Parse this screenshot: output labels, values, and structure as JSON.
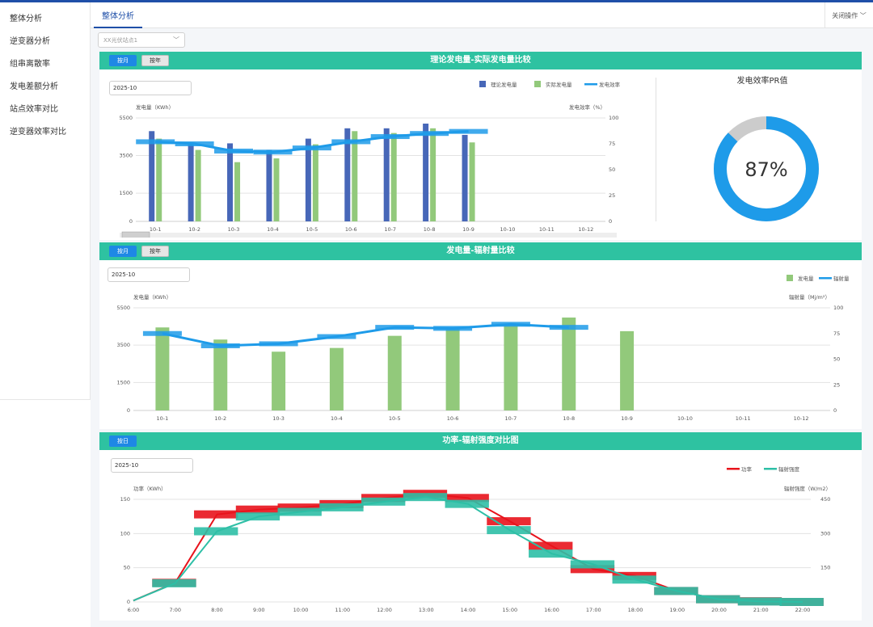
{
  "sidebar": {
    "items": [
      {
        "label": "整体分析"
      },
      {
        "label": "逆变器分析"
      },
      {
        "label": "组串离散率"
      },
      {
        "label": "发电差额分析"
      },
      {
        "label": "站点效率对比"
      },
      {
        "label": "逆变器效率对比"
      }
    ]
  },
  "tabs": {
    "active": "整体分析",
    "close": "关闭操作"
  },
  "site_select": {
    "value": "XX光伏站点1"
  },
  "panel1": {
    "btn_month": "按月",
    "btn_year": "按年",
    "title": "理论发电量-实际发电量比较",
    "date": "2025-10",
    "pr_title": "发电效率PR值",
    "pr_value": "87%"
  },
  "panel2": {
    "btn_month": "按月",
    "btn_year": "按年",
    "title": "发电量-辐射量比较",
    "date": "2025-10"
  },
  "panel3": {
    "btn_day": "按日",
    "title": "功率-辐射强度对比图",
    "date": "2025-10"
  },
  "colors": {
    "teal": "#2ec2a1",
    "theory": "#4767b8",
    "actual": "#92c97b",
    "line": "#1e9be9",
    "power": "#e8131c",
    "irr": "#2dbfa6",
    "donut_gray": "#cccccc"
  },
  "chart_data": [
    {
      "type": "bar",
      "title": "理论发电量-实际发电量比较",
      "ylabel": "发电量（KWh）",
      "y2label": "发电效率（%）",
      "categories": [
        "10-1",
        "10-2",
        "10-3",
        "10-4",
        "10-5",
        "10-6",
        "10-7",
        "10-8",
        "10-9",
        "10-10",
        "10-11",
        "10-12"
      ],
      "ylim": [
        0,
        5500
      ],
      "yticks": [
        0,
        1500,
        3500,
        5500
      ],
      "y2lim": [
        0,
        100
      ],
      "y2ticks": [
        0,
        25,
        50,
        75,
        100
      ],
      "series": [
        {
          "name": "理论发电量",
          "values": [
            4800,
            4200,
            4150,
            3800,
            4400,
            4950,
            4950,
            5200,
            4600,
            null,
            null,
            null
          ]
        },
        {
          "name": "实际发电量",
          "values": [
            4400,
            3800,
            3150,
            3350,
            4100,
            4800,
            4700,
            4950,
            4200,
            null,
            null,
            null
          ]
        },
        {
          "name": "发电效率",
          "type": "line",
          "values": [
            77,
            75,
            68,
            67,
            71,
            77,
            82,
            85,
            87,
            null,
            null,
            null
          ]
        }
      ],
      "pr_value": 87
    },
    {
      "type": "bar",
      "title": "发电量-辐射量比较",
      "ylabel": "发电量（KWh）",
      "y2label": "辐射量（Mj/m²）",
      "categories": [
        "10-1",
        "10-2",
        "10-3",
        "10-4",
        "10-5",
        "10-6",
        "10-7",
        "10-8",
        "10-9",
        "10-10",
        "10-11",
        "10-12"
      ],
      "ylim": [
        0,
        5500
      ],
      "yticks": [
        0,
        1500,
        3500,
        5500
      ],
      "y2lim": [
        0,
        100
      ],
      "y2ticks": [
        0,
        25,
        50,
        75,
        100
      ],
      "series": [
        {
          "name": "发电量",
          "values": [
            4450,
            3800,
            3150,
            3350,
            4000,
            4450,
            4650,
            4980,
            4250,
            null,
            null,
            null
          ]
        },
        {
          "name": "辐射量",
          "type": "line",
          "values": [
            75,
            63,
            65,
            72,
            81,
            80,
            84,
            81,
            null,
            null,
            null,
            null
          ]
        }
      ]
    },
    {
      "type": "line",
      "title": "功率-辐射强度对比图",
      "ylabel": "功率（KWh）",
      "y2label": "辐射强度（W/m2）",
      "x": [
        "6:00",
        "7:00",
        "8:00",
        "9:00",
        "10:00",
        "11:00",
        "12:00",
        "13:00",
        "14:00",
        "15:00",
        "16:00",
        "17:00",
        "18:00",
        "19:00",
        "20:00",
        "21:00",
        "22:00"
      ],
      "ylim": [
        0,
        150
      ],
      "yticks": [
        0,
        50,
        100,
        150
      ],
      "y2lim": [
        0,
        450
      ],
      "y2ticks": [
        0,
        150,
        300,
        450
      ],
      "series": [
        {
          "name": "功率",
          "values": [
            2,
            28,
            128,
            135,
            138,
            143,
            152,
            158,
            152,
            118,
            82,
            48,
            38,
            16,
            4,
            1,
            0
          ]
        },
        {
          "name": "辐射强度",
          "values": [
            6,
            82,
            310,
            375,
            395,
            415,
            440,
            460,
            430,
            315,
            212,
            165,
            98,
            48,
            12,
            2,
            0
          ]
        }
      ]
    }
  ]
}
